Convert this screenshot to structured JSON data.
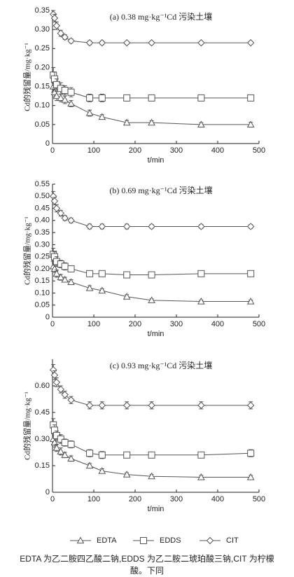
{
  "chart_data": [
    {
      "type": "line",
      "title": "(a) 0.38 mg·kg⁻¹Cd 污染土壤",
      "x_label": "t/min",
      "y_label": "Cd的残留量/mg·kg⁻¹",
      "x": [
        2,
        5,
        10,
        20,
        30,
        45,
        90,
        120,
        180,
        240,
        360,
        480
      ],
      "xlim": [
        0,
        500
      ],
      "xticks": [
        0,
        100,
        200,
        300,
        400,
        500
      ],
      "ylim": [
        0,
        0.35
      ],
      "yticks": [
        0,
        0.05,
        {
          "value": 0.1,
          "label": "0.10"
        },
        0.15,
        {
          "value": 0.2,
          "label": "0.20"
        },
        0.25,
        {
          "value": 0.3,
          "label": "0.30"
        },
        0.35
      ],
      "series": [
        {
          "name": "EDTA",
          "marker": "triangle",
          "color": "#555555",
          "values": [
            0.15,
            0.135,
            0.125,
            0.12,
            0.115,
            0.105,
            0.08,
            0.07,
            0.055,
            0.055,
            0.05,
            0.05
          ],
          "errors": [
            0.015,
            0.012,
            0.012,
            0.01,
            0.01,
            0.008,
            0.008,
            0.006,
            0.006,
            0.005,
            0.005,
            0.006
          ]
        },
        {
          "name": "EDDS",
          "marker": "square",
          "color": "#555555",
          "values": [
            0.18,
            0.17,
            0.155,
            0.145,
            0.14,
            0.135,
            0.12,
            0.12,
            0.12,
            0.12,
            0.12,
            0.12
          ],
          "errors": [
            0.02,
            0.018,
            0.015,
            0.015,
            0.012,
            0.012,
            0.01,
            0.01,
            0.006,
            0.006,
            0.005,
            0.005
          ]
        },
        {
          "name": "CIT",
          "marker": "diamond",
          "color": "#555555",
          "values": [
            0.34,
            0.33,
            0.31,
            0.29,
            0.28,
            0.27,
            0.265,
            0.265,
            0.265,
            0.265,
            0.265,
            0.265
          ],
          "errors": [
            0.01,
            0.01,
            0.01,
            0.008,
            0.006,
            0.005,
            0.005,
            0.005,
            0.004,
            0.004,
            0.004,
            0.004
          ]
        }
      ]
    },
    {
      "type": "line",
      "title": "(b) 0.69 mg·kg⁻¹Cd 污染土壤",
      "x_label": "t/min",
      "y_label": "Cd的残留量/mg·kg⁻¹",
      "x": [
        2,
        5,
        10,
        20,
        30,
        45,
        90,
        120,
        180,
        240,
        360,
        480
      ],
      "xlim": [
        0,
        500
      ],
      "xticks": [
        0,
        100,
        200,
        300,
        400,
        500
      ],
      "ylim": [
        0,
        0.55
      ],
      "yticks": [
        0,
        0.05,
        {
          "value": 0.1,
          "label": "0.10"
        },
        0.15,
        {
          "value": 0.2,
          "label": "0.20"
        },
        0.25,
        {
          "value": 0.3,
          "label": "0.30"
        },
        0.35,
        {
          "value": 0.4,
          "label": "0.40"
        },
        0.45,
        {
          "value": 0.5,
          "label": "0.50"
        },
        0.55
      ],
      "series": [
        {
          "name": "EDTA",
          "marker": "triangle",
          "color": "#555555",
          "values": [
            0.21,
            0.2,
            0.18,
            0.165,
            0.155,
            0.145,
            0.12,
            0.11,
            0.085,
            0.07,
            0.065,
            0.065
          ],
          "errors": [
            0.02,
            0.015,
            0.015,
            0.012,
            0.01,
            0.01,
            0.01,
            0.008,
            0.008,
            0.006,
            0.006,
            0.006
          ]
        },
        {
          "name": "EDDS",
          "marker": "square",
          "color": "#555555",
          "values": [
            0.26,
            0.25,
            0.23,
            0.22,
            0.21,
            0.2,
            0.18,
            0.18,
            0.175,
            0.175,
            0.18,
            0.18
          ],
          "errors": [
            0.025,
            0.02,
            0.02,
            0.015,
            0.015,
            0.012,
            0.012,
            0.01,
            0.01,
            0.008,
            0.008,
            0.008
          ]
        },
        {
          "name": "CIT",
          "marker": "diamond",
          "color": "#555555",
          "values": [
            0.5,
            0.48,
            0.45,
            0.43,
            0.41,
            0.4,
            0.375,
            0.375,
            0.375,
            0.375,
            0.375,
            0.375
          ],
          "errors": [
            0.02,
            0.015,
            0.015,
            0.012,
            0.01,
            0.01,
            0.01,
            0.01,
            0.01,
            0.008,
            0.008,
            0.008
          ]
        }
      ]
    },
    {
      "type": "line",
      "title": "(c) 0.93 mg·kg⁻¹Cd 污染土壤",
      "x_label": "t/min",
      "y_label": "Cd的残留量/mg·kg⁻¹",
      "x": [
        2,
        5,
        10,
        20,
        30,
        45,
        90,
        120,
        180,
        240,
        360,
        480
      ],
      "xlim": [
        0,
        500
      ],
      "xticks": [
        0,
        100,
        200,
        300,
        400,
        500
      ],
      "ylim": [
        0,
        0.75
      ],
      "yticks": [
        0,
        0.15,
        {
          "value": 0.3,
          "label": "0.30"
        },
        0.45,
        {
          "value": 0.6,
          "label": "0.60"
        }
      ],
      "series": [
        {
          "name": "EDTA",
          "marker": "triangle",
          "color": "#555555",
          "values": [
            0.3,
            0.28,
            0.25,
            0.23,
            0.21,
            0.19,
            0.15,
            0.12,
            0.1,
            0.09,
            0.085,
            0.085
          ],
          "errors": [
            0.03,
            0.025,
            0.02,
            0.02,
            0.015,
            0.015,
            0.012,
            0.012,
            0.01,
            0.01,
            0.01,
            0.01
          ]
        },
        {
          "name": "EDDS",
          "marker": "square",
          "color": "#555555",
          "values": [
            0.38,
            0.35,
            0.32,
            0.3,
            0.28,
            0.27,
            0.22,
            0.21,
            0.21,
            0.21,
            0.21,
            0.22
          ],
          "errors": [
            0.035,
            0.03,
            0.025,
            0.025,
            0.02,
            0.02,
            0.02,
            0.02,
            0.015,
            0.015,
            0.015,
            0.02
          ]
        },
        {
          "name": "CIT",
          "marker": "diamond",
          "color": "#555555",
          "values": [
            0.69,
            0.66,
            0.62,
            0.58,
            0.55,
            0.52,
            0.49,
            0.49,
            0.49,
            0.49,
            0.49,
            0.49
          ],
          "errors": [
            0.03,
            0.025,
            0.025,
            0.02,
            0.02,
            0.02,
            0.02,
            0.02,
            0.02,
            0.02,
            0.02,
            0.02
          ]
        }
      ]
    }
  ],
  "caption": "EDTA 为乙二胺四乙酸二钠,EDDS 为乙二胺二琥珀酸三钠,CIT 为柠檬酸。下同"
}
